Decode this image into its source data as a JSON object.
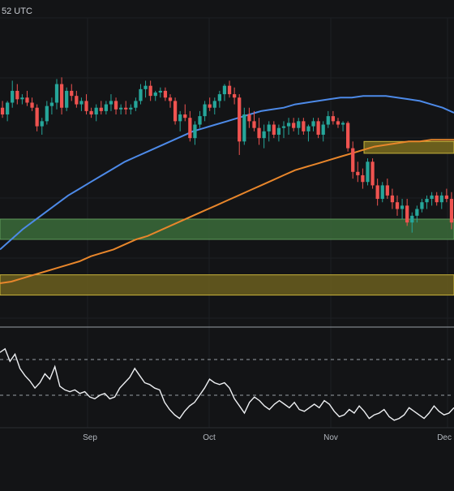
{
  "header": {
    "timestamp_fragment": "52 UTC"
  },
  "chart_data": [
    {
      "type": "candlestick",
      "x_tick_labels": [
        "Sep",
        "Oct",
        "Nov",
        "Dec"
      ],
      "grid": true,
      "price_range": [
        0,
        100
      ],
      "candles_ohlc": [
        [
          66,
          70,
          60,
          62
        ],
        [
          62,
          70,
          58,
          69
        ],
        [
          69,
          82,
          66,
          76
        ],
        [
          76,
          80,
          68,
          71
        ],
        [
          71,
          74,
          68,
          72
        ],
        [
          72,
          76,
          67,
          69
        ],
        [
          69,
          72,
          64,
          66
        ],
        [
          66,
          68,
          52,
          55
        ],
        [
          55,
          60,
          50,
          58
        ],
        [
          58,
          70,
          56,
          67
        ],
        [
          67,
          72,
          62,
          69
        ],
        [
          69,
          83,
          65,
          80
        ],
        [
          80,
          84,
          62,
          66
        ],
        [
          66,
          78,
          64,
          76
        ],
        [
          76,
          80,
          70,
          73
        ],
        [
          73,
          76,
          66,
          68
        ],
        [
          68,
          72,
          64,
          70
        ],
        [
          70,
          74,
          62,
          64
        ],
        [
          64,
          66,
          60,
          62
        ],
        [
          62,
          68,
          58,
          66
        ],
        [
          66,
          70,
          62,
          64
        ],
        [
          64,
          70,
          62,
          68
        ],
        [
          68,
          74,
          64,
          70
        ],
        [
          70,
          72,
          62,
          65
        ],
        [
          65,
          68,
          62,
          66
        ],
        [
          66,
          70,
          62,
          65
        ],
        [
          65,
          68,
          62,
          66
        ],
        [
          66,
          72,
          64,
          70
        ],
        [
          70,
          80,
          68,
          77
        ],
        [
          77,
          82,
          72,
          79
        ],
        [
          79,
          82,
          70,
          73
        ],
        [
          73,
          76,
          70,
          75
        ],
        [
          75,
          78,
          72,
          76
        ],
        [
          76,
          78,
          70,
          72
        ],
        [
          72,
          74,
          66,
          70
        ],
        [
          70,
          72,
          56,
          58
        ],
        [
          58,
          64,
          52,
          62
        ],
        [
          62,
          68,
          58,
          60
        ],
        [
          60,
          64,
          46,
          48
        ],
        [
          48,
          58,
          44,
          56
        ],
        [
          56,
          64,
          54,
          61
        ],
        [
          61,
          70,
          58,
          68
        ],
        [
          68,
          72,
          64,
          66
        ],
        [
          66,
          72,
          62,
          70
        ],
        [
          70,
          76,
          66,
          74
        ],
        [
          74,
          80,
          70,
          79
        ],
        [
          79,
          82,
          72,
          74
        ],
        [
          74,
          78,
          68,
          72
        ],
        [
          72,
          74,
          38,
          46
        ],
        [
          46,
          66,
          44,
          62
        ],
        [
          62,
          66,
          54,
          58
        ],
        [
          58,
          64,
          52,
          54
        ],
        [
          54,
          60,
          44,
          48
        ],
        [
          48,
          56,
          42,
          52
        ],
        [
          52,
          58,
          46,
          56
        ],
        [
          56,
          58,
          48,
          50
        ],
        [
          50,
          56,
          46,
          54
        ],
        [
          54,
          58,
          48,
          55
        ],
        [
          55,
          60,
          50,
          57
        ],
        [
          57,
          60,
          52,
          54
        ],
        [
          54,
          60,
          50,
          58
        ],
        [
          58,
          60,
          50,
          52
        ],
        [
          52,
          56,
          46,
          55
        ],
        [
          55,
          60,
          52,
          58
        ],
        [
          58,
          60,
          48,
          50
        ],
        [
          50,
          58,
          46,
          56
        ],
        [
          56,
          64,
          54,
          61
        ],
        [
          61,
          64,
          56,
          58
        ],
        [
          58,
          60,
          54,
          56
        ],
        [
          56,
          58,
          52,
          57
        ],
        [
          57,
          58,
          40,
          42
        ],
        [
          42,
          46,
          24,
          28
        ],
        [
          28,
          34,
          22,
          26
        ],
        [
          26,
          30,
          18,
          22
        ],
        [
          22,
          36,
          20,
          34
        ],
        [
          34,
          36,
          18,
          20
        ],
        [
          20,
          24,
          8,
          12
        ],
        [
          12,
          22,
          10,
          20
        ],
        [
          20,
          24,
          12,
          14
        ],
        [
          14,
          18,
          6,
          10
        ],
        [
          10,
          14,
          2,
          6
        ],
        [
          6,
          12,
          0,
          8
        ],
        [
          8,
          12,
          -4,
          -2
        ],
        [
          -2,
          4,
          -8,
          2
        ],
        [
          2,
          8,
          -2,
          6
        ],
        [
          6,
          12,
          4,
          10
        ],
        [
          10,
          14,
          6,
          12
        ],
        [
          12,
          16,
          8,
          14
        ],
        [
          14,
          16,
          8,
          10
        ],
        [
          10,
          16,
          6,
          14
        ],
        [
          14,
          18,
          10,
          12
        ],
        [
          12,
          16,
          -6,
          -2
        ]
      ],
      "moving_average_1": [
        -18,
        -12,
        -6,
        -1,
        4,
        9,
        14,
        18,
        22,
        26,
        30,
        34,
        37,
        40,
        43,
        46,
        49,
        52,
        54,
        56,
        58,
        60,
        62,
        64,
        65,
        66,
        68,
        69,
        70,
        71,
        72,
        72,
        73,
        73,
        73,
        72,
        71,
        70,
        68,
        66,
        63
      ],
      "moving_average_2": [
        -38,
        -37,
        -35,
        -33,
        -31,
        -29,
        -27,
        -25,
        -22,
        -20,
        -18,
        -15,
        -12,
        -10,
        -7,
        -4,
        -1,
        2,
        5,
        8,
        11,
        14,
        17,
        20,
        23,
        26,
        29,
        31,
        33,
        35,
        37,
        39,
        41,
        43,
        44,
        45,
        46,
        46,
        47,
        47,
        47
      ],
      "price_zones": [
        {
          "from": -12,
          "to": 0,
          "color": "#3b6b3a"
        },
        {
          "from": -45,
          "to": -33,
          "color": "#6b5e1e"
        },
        {
          "from": 39,
          "to": 46,
          "color": "#7a6b1f"
        }
      ],
      "oscillator": {
        "values": [
          78,
          82,
          68,
          76,
          60,
          52,
          46,
          38,
          44,
          54,
          48,
          62,
          40,
          36,
          34,
          36,
          32,
          34,
          28,
          26,
          30,
          32,
          26,
          28,
          38,
          44,
          50,
          60,
          52,
          44,
          42,
          38,
          36,
          22,
          14,
          8,
          4,
          12,
          18,
          22,
          30,
          38,
          48,
          44,
          42,
          44,
          38,
          26,
          18,
          10,
          22,
          28,
          24,
          18,
          14,
          20,
          24,
          20,
          16,
          22,
          14,
          12,
          16,
          20,
          16,
          24,
          20,
          12,
          6,
          8,
          14,
          10,
          18,
          12,
          4,
          8,
          10,
          14,
          6,
          2,
          4,
          8,
          16,
          12,
          8,
          4,
          10,
          18,
          12,
          8,
          10,
          16
        ],
        "reference_levels": [
          70,
          30
        ]
      }
    }
  ]
}
